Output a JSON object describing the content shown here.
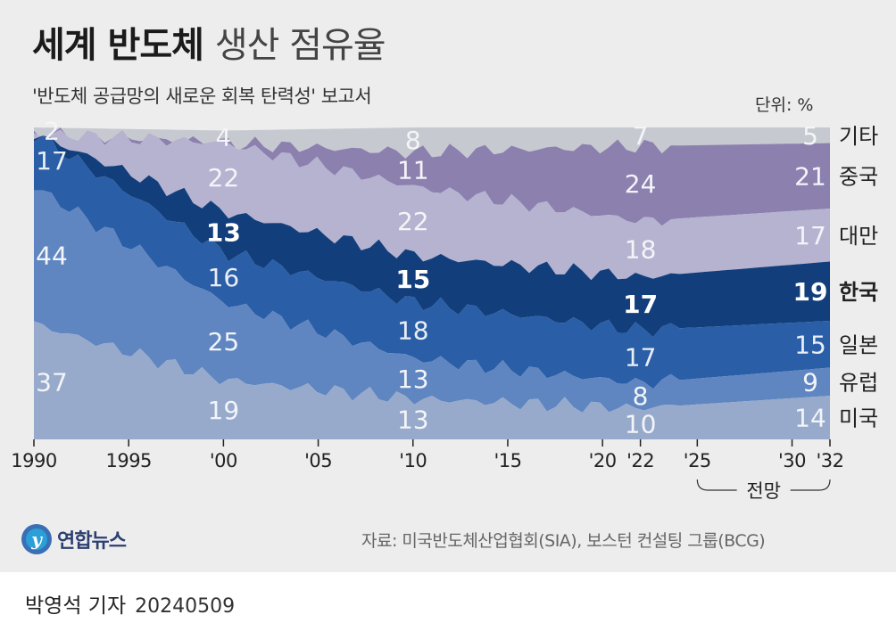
{
  "title_bold": "세계 반도체",
  "title_light": "생산 점유율",
  "subtitle": "'반도체 공급망의 새로운 회복 탄력성' 보고서",
  "unit_label": "단위: %",
  "forecast_label": "전망",
  "source": "자료: 미국반도체산업협회(SIA), 보스턴 컨설팅 그룹(BCG)",
  "logo_text": "연합뉴스",
  "reporter": "박영석 기자",
  "date": "20240509",
  "chart_data": {
    "type": "area",
    "stacked": true,
    "title": "세계 반도체 생산 점유율",
    "unit": "%",
    "x": [
      1990,
      2000,
      2010,
      2022,
      2032
    ],
    "x_tick_labels": [
      "1990",
      "1995",
      "'00",
      "'05",
      "'10",
      "'15",
      "'20",
      "'22",
      "'25",
      "'30",
      "'32"
    ],
    "x_tick_values": [
      1990,
      1995,
      2000,
      2005,
      2010,
      2015,
      2020,
      2022,
      2025,
      2030,
      2032
    ],
    "ylim": [
      0,
      100
    ],
    "series": [
      {
        "name": "미국",
        "color": "#97aacb",
        "text_color": "#f2f4f8",
        "values": [
          37,
          19,
          13,
          10,
          14
        ]
      },
      {
        "name": "유럽",
        "color": "#5f86c1",
        "text_color": "#f2f4f8",
        "values": [
          44,
          25,
          13,
          8,
          9
        ]
      },
      {
        "name": "일본",
        "color": "#2a5ea6",
        "text_color": "#e9eef6",
        "values": [
          17,
          16,
          18,
          17,
          15
        ]
      },
      {
        "name": "한국",
        "color": "#123f7c",
        "text_color": "#ffffff",
        "values": [
          null,
          13,
          15,
          17,
          19
        ],
        "highlight": true
      },
      {
        "name": "대만",
        "color": "#b6b3d1",
        "text_color": "#f4f4f8",
        "values": [
          null,
          22,
          22,
          18,
          17
        ]
      },
      {
        "name": "중국",
        "color": "#8c80af",
        "text_color": "#f4f3f8",
        "values": [
          null,
          null,
          11,
          24,
          21
        ]
      },
      {
        "name": "기타",
        "color": "#c6c9d0",
        "text_color": "#f4f5f7",
        "values": [
          2,
          4,
          8,
          7,
          5
        ]
      }
    ]
  }
}
